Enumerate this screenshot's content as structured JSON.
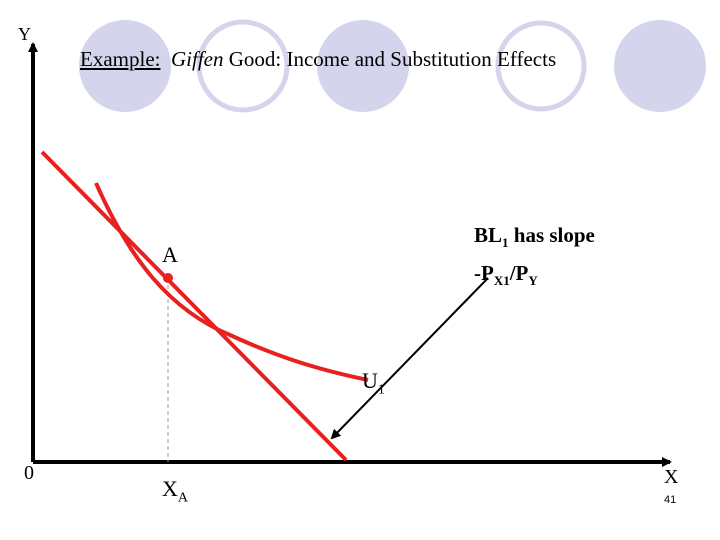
{
  "title": {
    "prefix": "Example:",
    "emph": "Giffen",
    "rest": " Good: Income and Substitution Effects"
  },
  "axes": {
    "y_label": "Y",
    "x_label": "X",
    "origin_label": "0"
  },
  "point_a": {
    "label": "A"
  },
  "xa": {
    "base": "X",
    "sub": "A"
  },
  "curve": {
    "base": "U",
    "sub": "1"
  },
  "budget_line_note": {
    "line1_base": "BL",
    "line1_sub": "1",
    "line1_rest": " has slope",
    "line2_a": "-P",
    "line2_a_sub": "X1",
    "line2_b": "/P",
    "line2_b_sub": "Y"
  },
  "page_number": "41",
  "colors": {
    "budget_line": "#e8201e",
    "indifference_curve": "#e8201e",
    "point": "#e8201e",
    "axes": "#000000",
    "guide_line": "#999999",
    "decor_fill": "#d4d4ec",
    "decor_outline": "#d4d4ec"
  }
}
